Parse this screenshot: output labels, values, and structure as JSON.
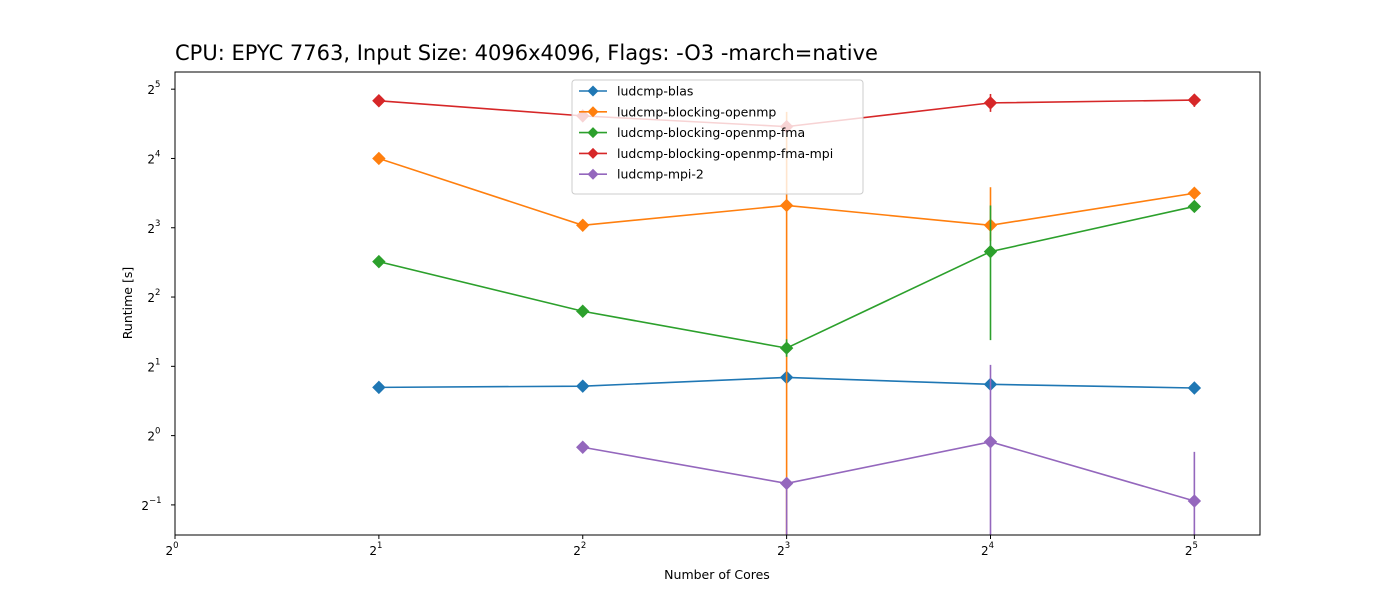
{
  "chart_data": {
    "type": "line",
    "title": "CPU: EPYC 7763, Input Size: 4096x4096, Flags: -O3 -march=native",
    "xlabel": "Number of Cores",
    "ylabel": "Runtime [s]",
    "xscale": "log2",
    "yscale": "log2",
    "xlim": [
      1,
      40
    ],
    "ylim": [
      0.37,
      38
    ],
    "x_ticks": [
      {
        "base": "2",
        "exp": "0"
      },
      {
        "base": "2",
        "exp": "1"
      },
      {
        "base": "2",
        "exp": "2"
      },
      {
        "base": "2",
        "exp": "3"
      },
      {
        "base": "2",
        "exp": "4"
      },
      {
        "base": "2",
        "exp": "5"
      }
    ],
    "y_ticks": [
      {
        "base": "2",
        "exp": "−1"
      },
      {
        "base": "2",
        "exp": "0"
      },
      {
        "base": "2",
        "exp": "1"
      },
      {
        "base": "2",
        "exp": "2"
      },
      {
        "base": "2",
        "exp": "3"
      },
      {
        "base": "2",
        "exp": "4"
      },
      {
        "base": "2",
        "exp": "5"
      }
    ],
    "legend_position": "top-center",
    "grid": false,
    "series": [
      {
        "name": "ludcmp-blas",
        "color": "#1f77b4",
        "x": [
          2,
          4,
          8,
          16,
          32
        ],
        "y": [
          1.62,
          1.64,
          1.79,
          1.67,
          1.61
        ],
        "yerr_low": [
          null,
          null,
          null,
          null,
          null
        ],
        "yerr_high": [
          null,
          null,
          null,
          null,
          null
        ]
      },
      {
        "name": "ludcmp-blocking-openmp",
        "color": "#ff7f0e",
        "x": [
          2,
          4,
          8,
          16,
          32
        ],
        "y": [
          16.0,
          8.2,
          10.0,
          8.2,
          11.3
        ],
        "yerr_low": [
          null,
          null,
          0.3,
          7.0,
          null
        ],
        "yerr_high": [
          null,
          null,
          25.5,
          12.0,
          null
        ]
      },
      {
        "name": "ludcmp-blocking-openmp-fma",
        "color": "#2ca02c",
        "x": [
          2,
          4,
          8,
          16,
          32
        ],
        "y": [
          5.7,
          3.47,
          2.4,
          6.3,
          9.9
        ],
        "yerr_low": [
          null,
          null,
          2.2,
          2.6,
          null
        ],
        "yerr_high": [
          null,
          null,
          2.62,
          10.0,
          null
        ]
      },
      {
        "name": "ludcmp-blocking-openmp-fma-mpi",
        "color": "#d62728",
        "x": [
          2,
          4,
          8,
          16,
          32
        ],
        "y": [
          28.5,
          24.5,
          22.0,
          27.9,
          28.7
        ],
        "yerr_low": [
          null,
          null,
          null,
          25.5,
          26.8
        ],
        "yerr_high": [
          null,
          null,
          null,
          30.5,
          30.5
        ]
      },
      {
        "name": "ludcmp-mpi-2",
        "color": "#9467bd",
        "x": [
          4,
          8,
          16,
          32
        ],
        "y": [
          0.89,
          0.62,
          0.94,
          0.52
        ],
        "yerr_low": [
          null,
          0.3,
          0.3,
          0.3
        ],
        "yerr_high": [
          null,
          null,
          2.03,
          0.85
        ]
      }
    ]
  }
}
